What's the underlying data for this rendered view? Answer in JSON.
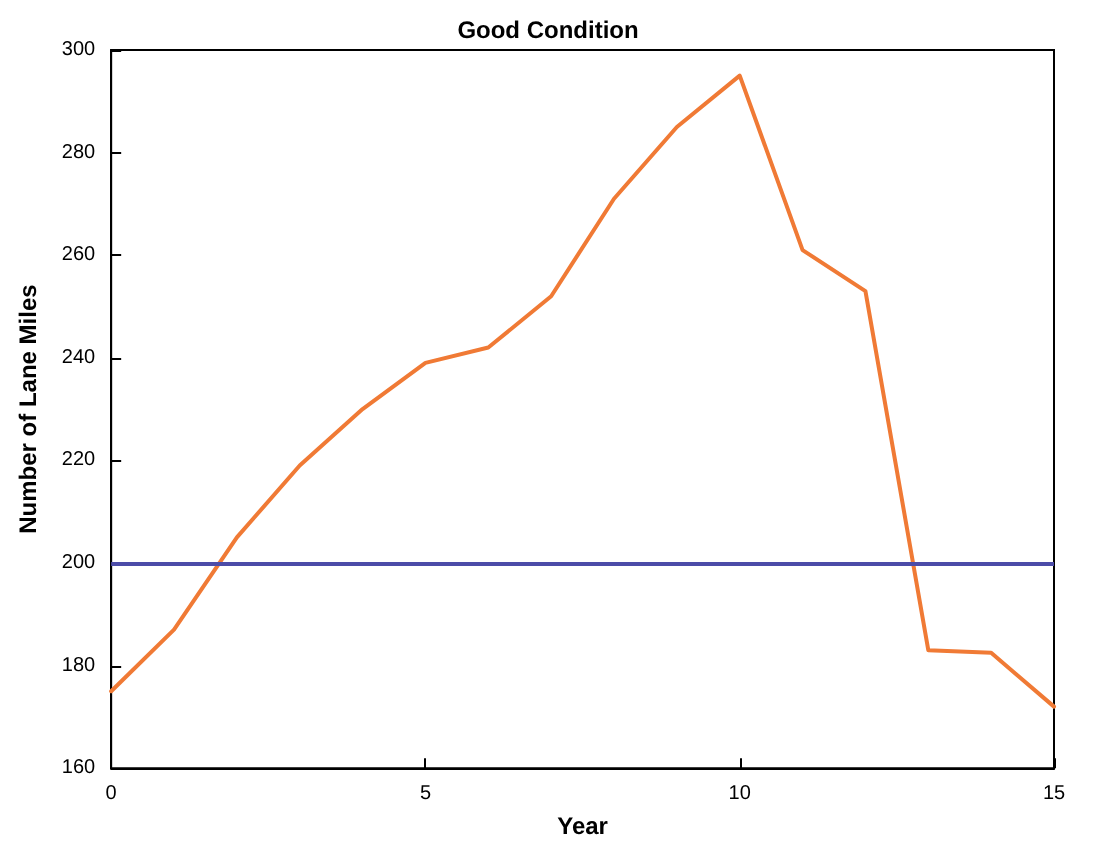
{
  "chart_data": {
    "type": "line",
    "title": "Good Condition",
    "xlabel": "Year",
    "ylabel": "Number of Lane Miles",
    "x": [
      0,
      1,
      2,
      3,
      4,
      5,
      6,
      7,
      8,
      9,
      10,
      11,
      12,
      13,
      14,
      15
    ],
    "series": [
      {
        "color": "#f07a35",
        "values": [
          175,
          187,
          205,
          219,
          230,
          239,
          242,
          252,
          271,
          285,
          295,
          261,
          253,
          183,
          182.5,
          172
        ]
      }
    ],
    "xlim": [
      0,
      15
    ],
    "xticks": [
      0,
      5,
      10,
      15
    ],
    "ylim": [
      160,
      300
    ],
    "yticks": [
      160,
      180,
      200,
      220,
      240,
      260,
      280,
      300
    ],
    "ref_lines": [
      {
        "axis": "y",
        "value": 200,
        "color": "#4c4ca8"
      }
    ],
    "grid": false,
    "marker": "none",
    "line_style": "solid"
  }
}
